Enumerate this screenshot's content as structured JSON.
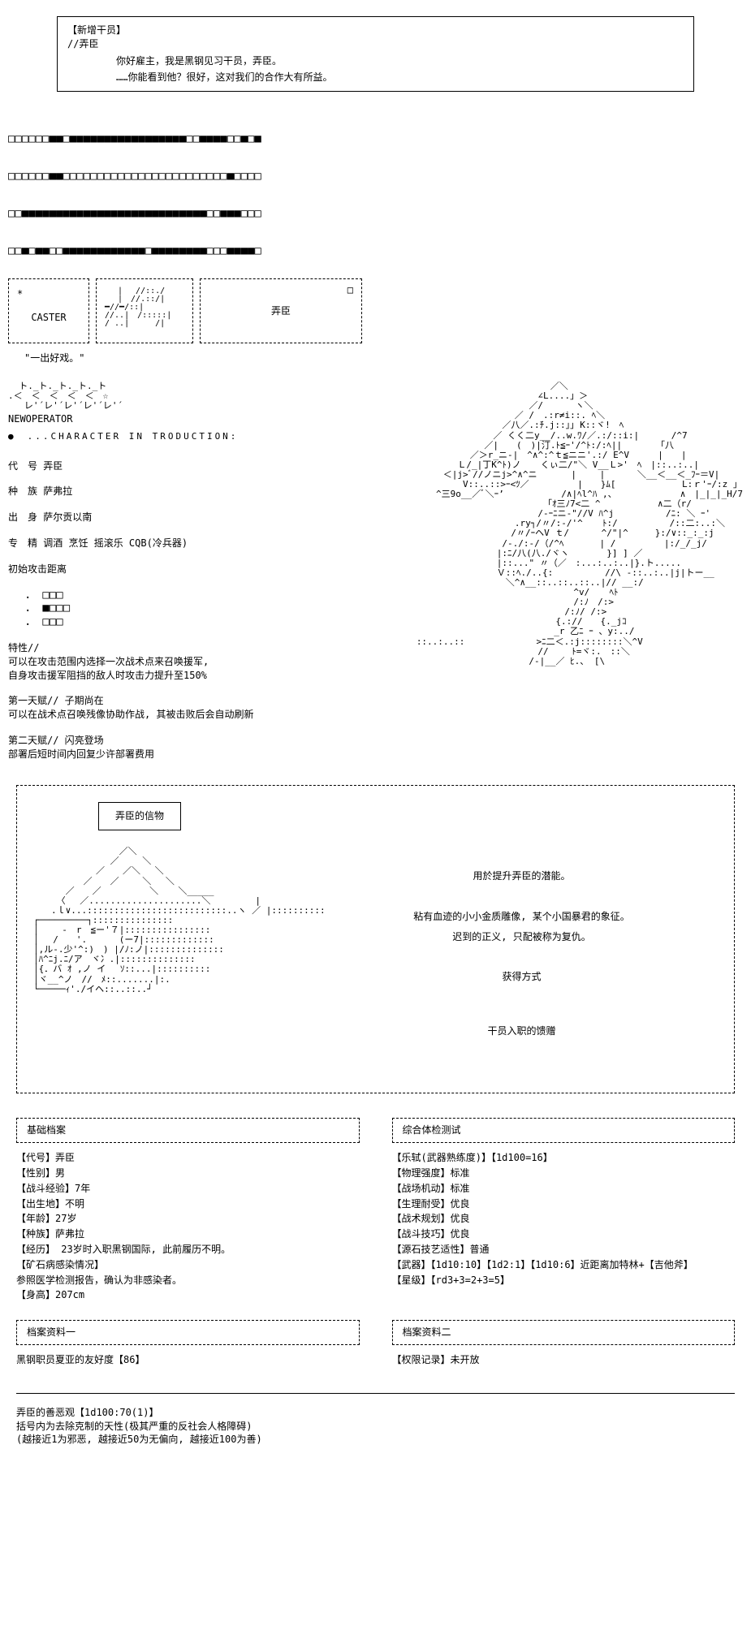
{
  "dialog": {
    "header1": "【新增干员】",
    "header2": "//弄臣",
    "line1": "你好雇主，我是黑钢见习干员，弄臣。",
    "line2": "……你能看到他？很好，这对我们的合作大有所益。"
  },
  "squares": {
    "row1": "□□□□□□■■□■■■■■■■■■■■■■■■■■□□■■■■□□■□■",
    "row2": "□□□□□□■■□□□□□□□□□□□□□□□□□□□□□□□□■□□□□",
    "row3": "□□■■■■■■■■■■■■■■■■■■■■■■■■■■■□□■■■□□□",
    "row4": "□□■□■■□□■■■■■■■■■■■■□■■■■■■■■□□□■■■■□"
  },
  "boxes": {
    "star": "*",
    "caster": "CASTER",
    "name": "弄臣",
    "corner": "□"
  },
  "quote": "\"一出好戏。\"",
  "newop": {
    "stars": "  ト._ト._ト._ト._ト\n.＜　＜　＜　＜　＜　☆\n   レ'´レ'´レ'´レ'´レ'´",
    "label": "NEWOPERATOR",
    "intro": "●　...CHARACTER IN TRODUCTION:"
  },
  "info": {
    "codename_label": "代　号",
    "codename": "弄臣",
    "race_label": "种　族",
    "race": "萨弗拉",
    "origin_label": "出　身",
    "origin": "萨尔贡以南",
    "specialty_label": "专　精",
    "specialty": "调酒 烹饪 摇滚乐 CQB(冷兵器)",
    "range_label": "初始攻击距离",
    "range_grid": ".　□□□\n.　■□□□\n.　□□□"
  },
  "traits": {
    "trait_header": "特性//",
    "trait_line1": "可以在攻击范围内选择一次战术点来召唤援军,",
    "trait_line2": "自身攻击援军阻挡的敌人时攻击力提升至150%",
    "talent1_header": "第一天赋// 子期尚在",
    "talent1_line": "可以在战术点召唤残像协助作战, 其被击败后会自动刷新",
    "talent2_header": "第二天赋// 闪亮登场",
    "talent2_line": "部署后短时间内回复少许部署费用"
  },
  "token": {
    "title": "弄臣的信物",
    "desc1": "用於提升弄臣的潜能。",
    "desc2": "粘有血迹的小小金质雕像, 某个小国暴君的象征。",
    "desc3": "迟到的正义, 只配被称为复仇。",
    "method_label": "获得方式",
    "method": "干员入职的馈赠"
  },
  "profile": {
    "header": "基础档案",
    "codename": "【代号】弄臣",
    "gender": "【性别】男",
    "exp": "【战斗经验】7年",
    "birthplace": "【出生地】不明",
    "age": "【年龄】27岁",
    "race": "【种族】萨弗拉",
    "history": "【经历】 23岁时入职黑钢国际, 此前履历不明。",
    "infection_label": "【矿石病感染情况】",
    "infection": "参照医学检测报告，确认为非感染者。",
    "height": "【身高】207cm"
  },
  "exam": {
    "header": "综合体检测试",
    "weapon": "【乐轼(武器熟练度)】【1d100=16】",
    "physical": "【物理强度】标准",
    "mobility": "【战场机动】标准",
    "endurance": "【生理耐受】优良",
    "tactical": "【战术规划】优良",
    "combat": "【战斗技巧】优良",
    "arts": "【源石技艺适性】普通",
    "weapons": "【武器】【1d10:10】【1d2:1】【1d10:6】近距离加特林+【吉他斧】",
    "star": "【星级】【rd3+3=2+3=5】"
  },
  "archive1": {
    "header": "档案资料一",
    "content": "黑钢职员夏亚的友好度【86】"
  },
  "archive2": {
    "header": "档案资料二",
    "content": "【权限记录】未开放"
  },
  "footer": {
    "line1": "弄臣的善恶观【1d100:70(1)】",
    "line2": "括号内为去除克制的天性(极其严重的反社会人格障碍)",
    "line3": "(越接近1为邪恶, 越接近50为无偏向, 越接近100为善)"
  },
  "ascii_main": "　　　　　　　　　　　　　　　／＼\n　　　　　　　　　　　　　 ∠L....」＞\n　　　　　　　　　　　　 ／/　　　 ヽ＼\n　　　　　　　　　　　／ /　.:r≠i::. ﾍ＼\n　　　　　　　　　 ／八／.:ﾁ.j::｣｣ K::ヾ!　ﾍ\n　　　　　　　　 ／ くく二y__/..w.ﾜ/／.:/::i:|　　　 /^7\n　　　　　　　 ／|　　(　)|汀.ﾄ≦ｰ'/^ﾄ:/:ﾍ|| 　 　 「八\n　　　　　　／＞r_ニ-|　^∧^:^ｔ≦ニニ'.:/ E^V　 　 |　　|\n　　　　 Ｌ/_|丁K^ﾄ)ノ 　 くぃ二/\"＼ V__Ｌ>'　ﾍ　|::..:..|\n　　　＜|j>ﾞ//ノニj>^∧^ニ 　 　 |　 　|　　　 ＼__＜__＜_ﾌｰ＝V|\n　　　 　 V::..::>ｰ<ﾂ／ 　 　 　 |　　}ﾑ[　　 　 　 　 L:ｒ'ｰ/:z 」\n 　 ^三9o__／ﾞ＼ｰ’　 　 　 　 /∧|ﾍl^ﾊ ,、　　　　　　　 ∧　|_|_|_H/7\n　　　　　　　　　　　　 　 「ｵ三ﾉ7<二 ^　 　 　 　 ∧二（r/\n　　　　　　　　　　　　　 /-ｰﾆニ-\"//V ﾊ^j　　 　 　 /ﾆ: ＼ ｰ'\n　　　　 　 　 　 　 .ry┐/〃/:-/'^ 　 ﾄ:/　　 　 　 /::二:..:＼\n　　　　　　　　　 　/〃/ｰヘV ｔ/　　　 ^/\"|^　　　}:/∨::_:_:j\n　　　　　　　　　 /-./:-/（/^ﾍ　　　　| / 　 　 　 |:/_/_j/\n　　　　　　　　　|:ﾆ/八(八./ヾヽ　　 　 }] ] ／\n　　　　　　　　　|::...\" 〃（／　:...:..:..|}.ト.....\n　　　　　　　　　Ｖ::ﾍ./..{:　　 　 　 //\\ -::..:..|j|トー__\n　　　　　　　　　　＼^∧__::..::..::..|// __:/\n　　　　　　　　　　　　　　　　　 ^v/ 　 ﾍﾄ\n　　　　　　　　　　　　　　　　　 /:ﾉ　/:>\n　　　　　　　　　　　　　　　　 /:ﾉ/ /:>\n　　　　　　　　　　　　　　　 {.://　　{._jｺ\n　　　　　　　　　 　 　 　 　_r 乙ﾆ ｰ 、y:../\n::..:..::　 　 　 　 　 >ﾆ二＜.:j::::::::＼^V\n　　　　　　　　　　　　　 //　　 ﾄ=ヾ:.　::＼\n　　　　　　　　　　　　 /-|__／ ﾋ.、 [\\",
  "ascii_token": "　　　　　　　　　 ／＼\n　　　　　　　　 ／　　 ＼\n　　　　　　　／　　／＼　 ＼\n　　　　　 ／　　／　　 ＼　 ＼\n　　　 ／　　／ 　 　 　 ＼ 　 ＼_____\n　　 〈　 ／.....................＼　　　　　|\n　　.ｌ∨...::::::::::::::::::::::::::..ヽ ／ |::::::::::\n┌─────────┐:::::::::::::::\n│　　 -　r　≦ー'７|::::::::::::::::\n│　 /　　'.　　　 (ー7|:::::::::::::\n│,ル-.少'^:)　) |/ﾉ:ノ|::::::::::::::\n│ﾊ^ﾆj.ﾆ/ア　ヾ冫.|::::::::::::::\n│{．バ ｵ ,ノ イ　 ｿ::...|::::::::::\n│ヾ__^ノ　//　ﾒ::.......|:.\n└─────ｨ'./イヘ::..::..┘"
}
